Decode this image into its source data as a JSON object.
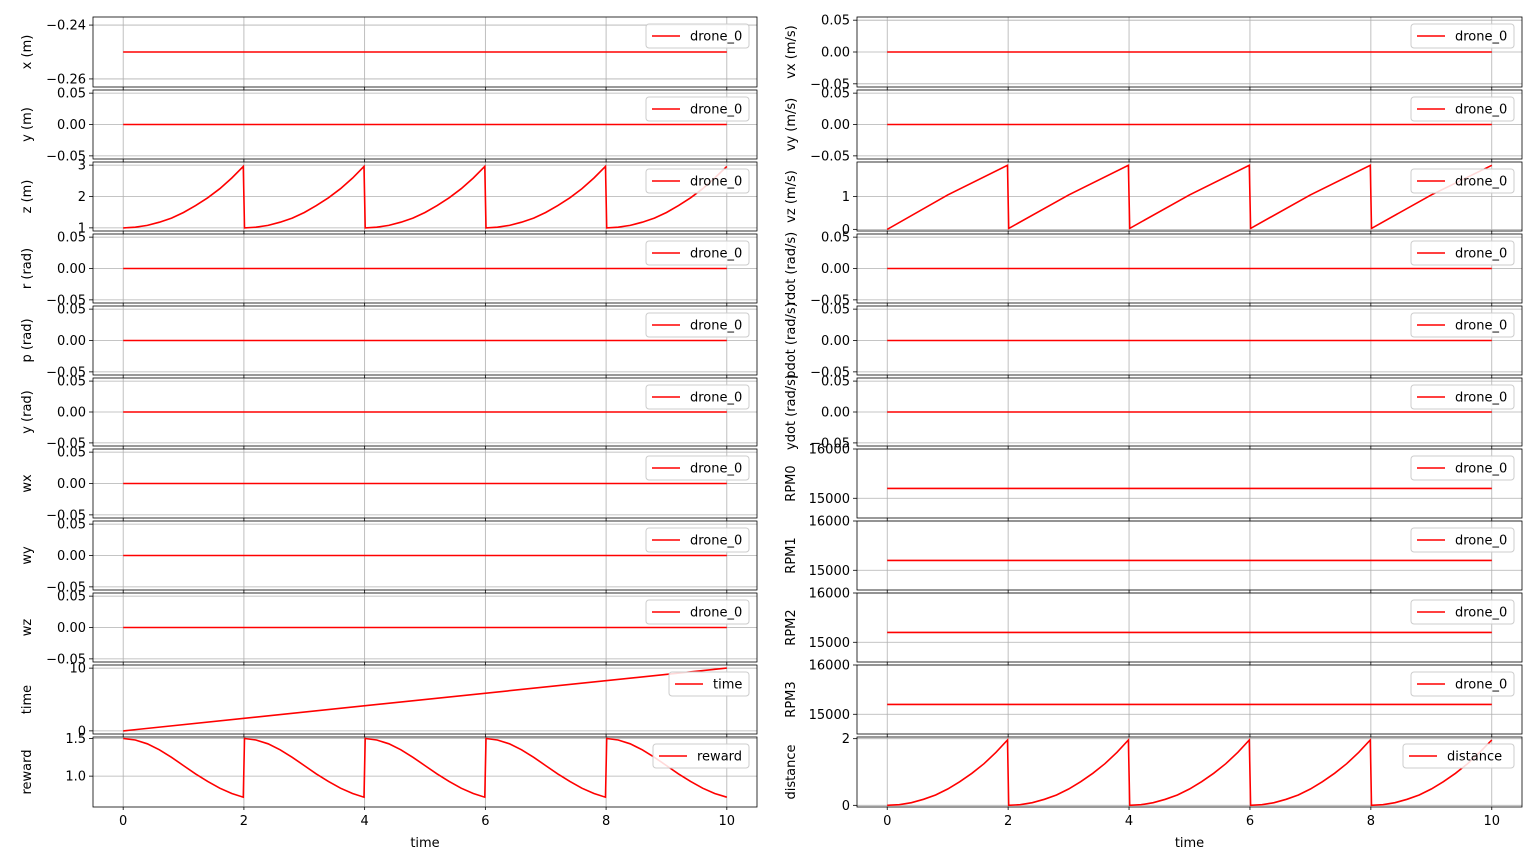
{
  "figure": {
    "x_axis_label": "time",
    "x_ticks": [
      0,
      2,
      4,
      6,
      8,
      10
    ],
    "line_color": "#ff0000",
    "grid_color": "#b0b0b0"
  },
  "chart_data": [
    {
      "type": "line",
      "column": "left",
      "ylabel": "x (m)",
      "legend": "drone_0",
      "xlim": [
        -0.5,
        10.5
      ],
      "ylim": [
        -0.263,
        -0.237
      ],
      "yticks": [
        -0.26,
        -0.24
      ],
      "ytick_labels": [
        "−0.26",
        "−0.24"
      ],
      "series": [
        {
          "name": "drone_0",
          "x": [
            0,
            10
          ],
          "values": [
            -0.25,
            -0.25
          ]
        }
      ]
    },
    {
      "type": "line",
      "column": "left",
      "ylabel": "y (m)",
      "legend": "drone_0",
      "xlim": [
        -0.5,
        10.5
      ],
      "ylim": [
        -0.055,
        0.055
      ],
      "yticks": [
        -0.05,
        0.0,
        0.05
      ],
      "ytick_labels": [
        "−0.05",
        "0.00",
        "0.05"
      ],
      "series": [
        {
          "name": "drone_0",
          "x": [
            0,
            10
          ],
          "values": [
            0,
            0
          ]
        }
      ]
    },
    {
      "type": "line",
      "column": "left",
      "ylabel": "z (m)",
      "legend": "drone_0",
      "xlim": [
        -0.5,
        10.5
      ],
      "ylim": [
        0.9,
        3.1
      ],
      "yticks": [
        1,
        2,
        3
      ],
      "ytick_labels": [
        "1",
        "2",
        "3"
      ],
      "series": [
        {
          "name": "drone_0",
          "x": [
            0,
            0.2,
            0.4,
            0.6,
            0.8,
            1.0,
            1.2,
            1.4,
            1.6,
            1.8,
            1.99,
            2.01,
            2.2,
            2.4,
            2.6,
            2.8,
            3.0,
            3.2,
            3.4,
            3.6,
            3.8,
            3.99,
            4.01,
            4.2,
            4.4,
            4.6,
            4.8,
            5.0,
            5.2,
            5.4,
            5.6,
            5.8,
            5.99,
            6.01,
            6.2,
            6.4,
            6.6,
            6.8,
            7.0,
            7.2,
            7.4,
            7.6,
            7.8,
            7.99,
            8.01,
            8.2,
            8.4,
            8.6,
            8.8,
            9.0,
            9.2,
            9.4,
            9.6,
            9.8,
            10.0
          ],
          "values": [
            1.0,
            1.02,
            1.08,
            1.18,
            1.31,
            1.49,
            1.71,
            1.96,
            2.25,
            2.59,
            2.96,
            1.0,
            1.02,
            1.08,
            1.18,
            1.31,
            1.49,
            1.71,
            1.96,
            2.25,
            2.59,
            2.96,
            1.0,
            1.02,
            1.08,
            1.18,
            1.31,
            1.49,
            1.71,
            1.96,
            2.25,
            2.59,
            2.96,
            1.0,
            1.02,
            1.08,
            1.18,
            1.31,
            1.49,
            1.71,
            1.96,
            2.25,
            2.59,
            2.96,
            1.0,
            1.02,
            1.08,
            1.18,
            1.31,
            1.49,
            1.71,
            1.96,
            2.25,
            2.59,
            2.96
          ]
        }
      ]
    },
    {
      "type": "line",
      "column": "left",
      "ylabel": "r (rad)",
      "legend": "drone_0",
      "xlim": [
        -0.5,
        10.5
      ],
      "ylim": [
        -0.055,
        0.055
      ],
      "yticks": [
        -0.05,
        0.0,
        0.05
      ],
      "ytick_labels": [
        "−0.05",
        "0.00",
        "0.05"
      ],
      "series": [
        {
          "name": "drone_0",
          "x": [
            0,
            10
          ],
          "values": [
            0,
            0
          ]
        }
      ]
    },
    {
      "type": "line",
      "column": "left",
      "ylabel": "p (rad)",
      "legend": "drone_0",
      "xlim": [
        -0.5,
        10.5
      ],
      "ylim": [
        -0.055,
        0.055
      ],
      "yticks": [
        -0.05,
        0.0,
        0.05
      ],
      "ytick_labels": [
        "−0.05",
        "0.00",
        "0.05"
      ],
      "series": [
        {
          "name": "drone_0",
          "x": [
            0,
            10
          ],
          "values": [
            0,
            0
          ]
        }
      ]
    },
    {
      "type": "line",
      "column": "left",
      "ylabel": "y (rad)",
      "legend": "drone_0",
      "xlim": [
        -0.5,
        10.5
      ],
      "ylim": [
        -0.055,
        0.055
      ],
      "yticks": [
        -0.05,
        0.0,
        0.05
      ],
      "ytick_labels": [
        "−0.05",
        "0.00",
        "0.05"
      ],
      "series": [
        {
          "name": "drone_0",
          "x": [
            0,
            10
          ],
          "values": [
            0,
            0
          ]
        }
      ]
    },
    {
      "type": "line",
      "column": "left",
      "ylabel": "wx",
      "legend": "drone_0",
      "xlim": [
        -0.5,
        10.5
      ],
      "ylim": [
        -0.055,
        0.055
      ],
      "yticks": [
        -0.05,
        0.0,
        0.05
      ],
      "ytick_labels": [
        "−0.05",
        "0.00",
        "0.05"
      ],
      "series": [
        {
          "name": "drone_0",
          "x": [
            0,
            10
          ],
          "values": [
            0,
            0
          ]
        }
      ]
    },
    {
      "type": "line",
      "column": "left",
      "ylabel": "wy",
      "legend": "drone_0",
      "xlim": [
        -0.5,
        10.5
      ],
      "ylim": [
        -0.055,
        0.055
      ],
      "yticks": [
        -0.05,
        0.0,
        0.05
      ],
      "ytick_labels": [
        "−0.05",
        "0.00",
        "0.05"
      ],
      "series": [
        {
          "name": "drone_0",
          "x": [
            0,
            10
          ],
          "values": [
            0,
            0
          ]
        }
      ]
    },
    {
      "type": "line",
      "column": "left",
      "ylabel": "wz",
      "legend": "drone_0",
      "xlim": [
        -0.5,
        10.5
      ],
      "ylim": [
        -0.055,
        0.055
      ],
      "yticks": [
        -0.05,
        0.0,
        0.05
      ],
      "ytick_labels": [
        "−0.05",
        "0.00",
        "0.05"
      ],
      "series": [
        {
          "name": "drone_0",
          "x": [
            0,
            10
          ],
          "values": [
            0,
            0
          ]
        }
      ]
    },
    {
      "type": "line",
      "column": "left",
      "ylabel": "time",
      "legend": "time",
      "xlim": [
        -0.5,
        10.5
      ],
      "ylim": [
        -0.5,
        10.5
      ],
      "yticks": [
        0,
        10
      ],
      "ytick_labels": [
        "0",
        "10"
      ],
      "series": [
        {
          "name": "time",
          "x": [
            0,
            10
          ],
          "values": [
            0,
            10
          ]
        }
      ]
    },
    {
      "type": "line",
      "column": "left",
      "ylabel": "reward",
      "legend": "reward",
      "xlim": [
        -0.5,
        10.5
      ],
      "ylim": [
        0.59,
        1.52
      ],
      "yticks": [
        1.0,
        1.5
      ],
      "ytick_labels": [
        "1.0",
        "1.5"
      ],
      "series": [
        {
          "name": "reward",
          "x": [
            0,
            0.2,
            0.4,
            0.6,
            0.8,
            1.0,
            1.2,
            1.4,
            1.6,
            1.8,
            1.99,
            2.01,
            2.2,
            2.4,
            2.6,
            2.8,
            3.0,
            3.2,
            3.4,
            3.6,
            3.8,
            3.99,
            4.01,
            4.2,
            4.4,
            4.6,
            4.8,
            5.0,
            5.2,
            5.4,
            5.6,
            5.8,
            5.99,
            6.01,
            6.2,
            6.4,
            6.6,
            6.8,
            7.0,
            7.2,
            7.4,
            7.6,
            7.8,
            7.99,
            8.01,
            8.2,
            8.4,
            8.6,
            8.8,
            9.0,
            9.2,
            9.4,
            9.6,
            9.8,
            10.0
          ],
          "values": [
            1.5,
            1.48,
            1.43,
            1.35,
            1.25,
            1.14,
            1.03,
            0.93,
            0.84,
            0.77,
            0.72,
            1.5,
            1.48,
            1.43,
            1.35,
            1.25,
            1.14,
            1.03,
            0.93,
            0.84,
            0.77,
            0.72,
            1.5,
            1.48,
            1.43,
            1.35,
            1.25,
            1.14,
            1.03,
            0.93,
            0.84,
            0.77,
            0.72,
            1.5,
            1.48,
            1.43,
            1.35,
            1.25,
            1.14,
            1.03,
            0.93,
            0.84,
            0.77,
            0.72,
            1.5,
            1.48,
            1.43,
            1.35,
            1.25,
            1.14,
            1.03,
            0.93,
            0.84,
            0.77,
            0.72
          ]
        }
      ]
    },
    {
      "type": "line",
      "column": "right",
      "ylabel": "vx (m/s)",
      "legend": "drone_0",
      "xlim": [
        -0.5,
        10.5
      ],
      "ylim": [
        -0.055,
        0.055
      ],
      "yticks": [
        -0.05,
        0.0,
        0.05
      ],
      "ytick_labels": [
        "−0.05",
        "0.00",
        "0.05"
      ],
      "series": [
        {
          "name": "drone_0",
          "x": [
            0,
            10
          ],
          "values": [
            0,
            0
          ]
        }
      ]
    },
    {
      "type": "line",
      "column": "right",
      "ylabel": "vy (m/s)",
      "legend": "drone_0",
      "xlim": [
        -0.5,
        10.5
      ],
      "ylim": [
        -0.055,
        0.055
      ],
      "yticks": [
        -0.05,
        0.0,
        0.05
      ],
      "ytick_labels": [
        "−0.05",
        "0.00",
        "0.05"
      ],
      "series": [
        {
          "name": "drone_0",
          "x": [
            0,
            10
          ],
          "values": [
            0,
            0
          ]
        }
      ]
    },
    {
      "type": "line",
      "column": "right",
      "ylabel": "vz (m/s)",
      "legend": "drone_0",
      "xlim": [
        -0.5,
        10.5
      ],
      "ylim": [
        -0.05,
        2.05
      ],
      "yticks": [
        0,
        1
      ],
      "ytick_labels": [
        "0",
        "1"
      ],
      "series": [
        {
          "name": "drone_0",
          "x": [
            0,
            1.0,
            1.99,
            2.01,
            3.0,
            3.99,
            4.01,
            5.0,
            5.99,
            6.01,
            7.0,
            7.99,
            8.01,
            9.0,
            10.0
          ],
          "values": [
            0.0,
            1.05,
            1.95,
            0.03,
            1.05,
            1.95,
            0.03,
            1.05,
            1.95,
            0.03,
            1.05,
            1.95,
            0.03,
            1.05,
            1.95
          ]
        }
      ]
    },
    {
      "type": "line",
      "column": "right",
      "ylabel": "rdot (rad/s)",
      "legend": "drone_0",
      "xlim": [
        -0.5,
        10.5
      ],
      "ylim": [
        -0.055,
        0.055
      ],
      "yticks": [
        -0.05,
        0.0,
        0.05
      ],
      "ytick_labels": [
        "−0.05",
        "0.00",
        "0.05"
      ],
      "series": [
        {
          "name": "drone_0",
          "x": [
            0,
            10
          ],
          "values": [
            0,
            0
          ]
        }
      ]
    },
    {
      "type": "line",
      "column": "right",
      "ylabel": "pdot (rad/s)",
      "legend": "drone_0",
      "xlim": [
        -0.5,
        10.5
      ],
      "ylim": [
        -0.055,
        0.055
      ],
      "yticks": [
        -0.05,
        0.0,
        0.05
      ],
      "ytick_labels": [
        "−0.05",
        "0.00",
        "0.05"
      ],
      "series": [
        {
          "name": "drone_0",
          "x": [
            0,
            10
          ],
          "values": [
            0,
            0
          ]
        }
      ]
    },
    {
      "type": "line",
      "column": "right",
      "ylabel": "ydot (rad/s)",
      "legend": "drone_0",
      "xlim": [
        -0.5,
        10.5
      ],
      "ylim": [
        -0.055,
        0.055
      ],
      "yticks": [
        -0.05,
        0.0,
        0.05
      ],
      "ytick_labels": [
        "−0.05",
        "0.00",
        "0.05"
      ],
      "series": [
        {
          "name": "drone_0",
          "x": [
            0,
            10
          ],
          "values": [
            0,
            0
          ]
        }
      ]
    },
    {
      "type": "line",
      "column": "right",
      "ylabel": "RPM0",
      "legend": "drone_0",
      "xlim": [
        -0.5,
        10.5
      ],
      "ylim": [
        14600,
        16000
      ],
      "yticks": [
        15000,
        16000
      ],
      "ytick_labels": [
        "15000",
        "16000"
      ],
      "series": [
        {
          "name": "drone_0",
          "x": [
            0,
            10
          ],
          "values": [
            15200,
            15200
          ]
        }
      ]
    },
    {
      "type": "line",
      "column": "right",
      "ylabel": "RPM1",
      "legend": "drone_0",
      "xlim": [
        -0.5,
        10.5
      ],
      "ylim": [
        14600,
        16000
      ],
      "yticks": [
        15000,
        16000
      ],
      "ytick_labels": [
        "15000",
        "16000"
      ],
      "series": [
        {
          "name": "drone_0",
          "x": [
            0,
            10
          ],
          "values": [
            15200,
            15200
          ]
        }
      ]
    },
    {
      "type": "line",
      "column": "right",
      "ylabel": "RPM2",
      "legend": "drone_0",
      "xlim": [
        -0.5,
        10.5
      ],
      "ylim": [
        14600,
        16000
      ],
      "yticks": [
        15000,
        16000
      ],
      "ytick_labels": [
        "15000",
        "16000"
      ],
      "series": [
        {
          "name": "drone_0",
          "x": [
            0,
            10
          ],
          "values": [
            15200,
            15200
          ]
        }
      ]
    },
    {
      "type": "line",
      "column": "right",
      "ylabel": "RPM3",
      "legend": "drone_0",
      "xlim": [
        -0.5,
        10.5
      ],
      "ylim": [
        14600,
        16000
      ],
      "yticks": [
        15000,
        16000
      ],
      "ytick_labels": [
        "15000",
        "16000"
      ],
      "series": [
        {
          "name": "drone_0",
          "x": [
            0,
            10
          ],
          "values": [
            15200,
            15200
          ]
        }
      ]
    },
    {
      "type": "line",
      "column": "right",
      "ylabel": "distance",
      "legend": "distance",
      "xlim": [
        -0.5,
        10.5
      ],
      "ylim": [
        -0.05,
        2.05
      ],
      "yticks": [
        0,
        2
      ],
      "ytick_labels": [
        "0",
        "2"
      ],
      "series": [
        {
          "name": "distance",
          "x": [
            0,
            0.2,
            0.4,
            0.6,
            0.8,
            1.0,
            1.2,
            1.4,
            1.6,
            1.8,
            1.99,
            2.01,
            2.2,
            2.4,
            2.6,
            2.8,
            3.0,
            3.2,
            3.4,
            3.6,
            3.8,
            3.99,
            4.01,
            4.2,
            4.4,
            4.6,
            4.8,
            5.0,
            5.2,
            5.4,
            5.6,
            5.8,
            5.99,
            6.01,
            6.2,
            6.4,
            6.6,
            6.8,
            7.0,
            7.2,
            7.4,
            7.6,
            7.8,
            7.99,
            8.01,
            8.2,
            8.4,
            8.6,
            8.8,
            9.0,
            9.2,
            9.4,
            9.6,
            9.8,
            10.0
          ],
          "values": [
            0.0,
            0.02,
            0.08,
            0.18,
            0.31,
            0.49,
            0.71,
            0.96,
            1.25,
            1.59,
            1.96,
            0.0,
            0.02,
            0.08,
            0.18,
            0.31,
            0.49,
            0.71,
            0.96,
            1.25,
            1.59,
            1.96,
            0.0,
            0.02,
            0.08,
            0.18,
            0.31,
            0.49,
            0.71,
            0.96,
            1.25,
            1.59,
            1.96,
            0.0,
            0.02,
            0.08,
            0.18,
            0.31,
            0.49,
            0.71,
            0.96,
            1.25,
            1.59,
            1.96,
            0.0,
            0.02,
            0.08,
            0.18,
            0.31,
            0.49,
            0.71,
            0.96,
            1.25,
            1.59,
            1.96
          ]
        }
      ]
    }
  ]
}
